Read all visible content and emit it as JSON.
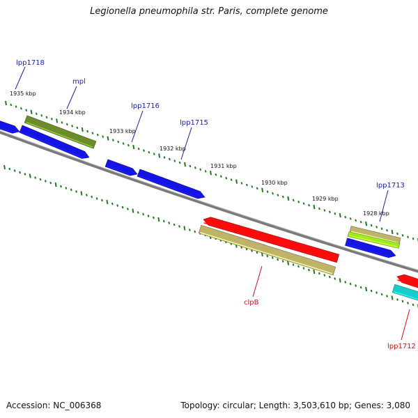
{
  "title": "Legionella pneumophila str. Paris, complete genome",
  "footer": {
    "accession": "Accession: NC_006368",
    "summary": "Topology: circular; Length: 3,503,610 bp; Genes: 3,080"
  },
  "colors": {
    "backbone": "#7a7a7a",
    "tick": "#1f7a1f",
    "forward_label": "#1a1aa6",
    "reverse_label": "#cc1111",
    "blue": "#1414e6",
    "olive": "#6b8c2a",
    "khaki": "#bfb36a",
    "red": "#ff0a0a",
    "lime": "#99ee22",
    "cyan": "#19cccc"
  },
  "kbp_labels": [
    "1935 kbp",
    "1934 kbp",
    "1933 kbp",
    "1932 kbp",
    "1931 kbp",
    "1930 kbp",
    "1929 kbp",
    "1928 kbp"
  ],
  "gene_labels": {
    "forward": [
      "lpp1718",
      "mpl",
      "lpp1716",
      "lpp1715",
      "lpp1713"
    ],
    "reverse": [
      "clpB",
      "lpp1712"
    ]
  }
}
